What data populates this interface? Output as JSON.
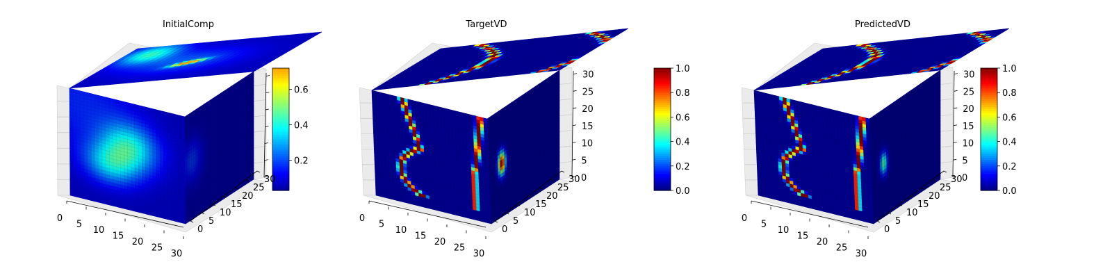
{
  "chart_data": [
    {
      "type": "heatmap",
      "title": "InitialComp",
      "colormap": "jet",
      "colorbar": {
        "range": [
          0.03,
          0.72
        ],
        "ticks": [
          "0.2",
          "0.4",
          "0.6"
        ],
        "tick_values": [
          0.2,
          0.4,
          0.6
        ]
      },
      "x_ticks": [
        "0",
        "5",
        "10",
        "15",
        "20",
        "25",
        "30"
      ],
      "y_ticks": [
        "0",
        "5",
        "10",
        "15",
        "20",
        "25",
        "30"
      ],
      "z_ticks": [],
      "xlim": [
        0,
        32
      ],
      "ylim": [
        0,
        32
      ],
      "zlim": [
        0,
        32
      ],
      "pattern": "initial"
    },
    {
      "type": "heatmap",
      "title": "TargetVD",
      "colormap": "jet",
      "colorbar": {
        "range": [
          0.0,
          1.0
        ],
        "ticks": [
          "0.0",
          "0.2",
          "0.4",
          "0.6",
          "0.8",
          "1.0"
        ],
        "tick_values": [
          0.0,
          0.2,
          0.4,
          0.6,
          0.8,
          1.0
        ]
      },
      "x_ticks": [
        "0",
        "5",
        "10",
        "15",
        "20",
        "25",
        "30"
      ],
      "y_ticks": [
        "0",
        "5",
        "10",
        "15",
        "20",
        "25",
        "30"
      ],
      "z_ticks": [
        "0",
        "5",
        "10",
        "15",
        "20",
        "25",
        "30"
      ],
      "xlim": [
        0,
        32
      ],
      "ylim": [
        0,
        32
      ],
      "zlim": [
        0,
        32
      ],
      "pattern": "target"
    },
    {
      "type": "heatmap",
      "title": "PredictedVD",
      "colormap": "jet",
      "colorbar": {
        "range": [
          0.0,
          1.0
        ],
        "ticks": [
          "0.0",
          "0.2",
          "0.4",
          "0.6",
          "0.8",
          "1.0"
        ],
        "tick_values": [
          0.0,
          0.2,
          0.4,
          0.6,
          0.8,
          1.0
        ]
      },
      "x_ticks": [
        "0",
        "5",
        "10",
        "15",
        "20",
        "25",
        "30"
      ],
      "y_ticks": [
        "0",
        "5",
        "10",
        "15",
        "20",
        "25",
        "30"
      ],
      "z_ticks": [
        "0",
        "5",
        "10",
        "15",
        "20",
        "25",
        "30"
      ],
      "xlim": [
        0,
        32
      ],
      "ylim": [
        0,
        32
      ],
      "zlim": [
        0,
        32
      ],
      "pattern": "predicted"
    }
  ]
}
